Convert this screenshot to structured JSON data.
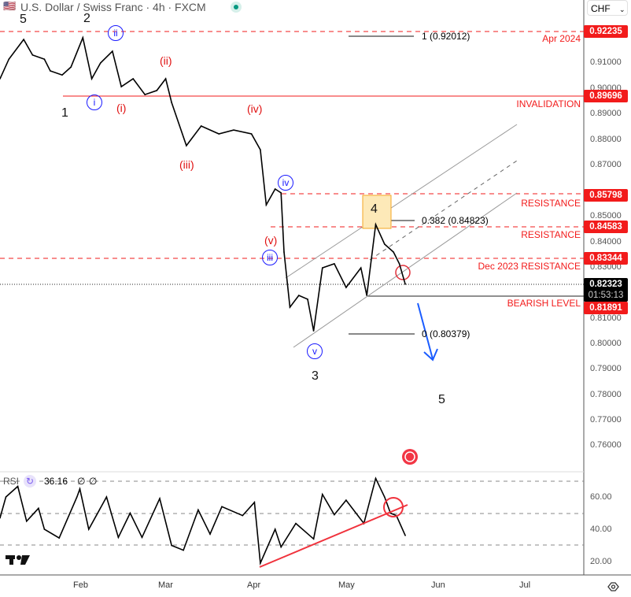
{
  "header": {
    "title": "U.S. Dollar / Swiss Franc · 4h · FXCM",
    "currency": "CHF"
  },
  "price_axis": {
    "ticks": [
      "0.91000",
      "0.90000",
      "0.89000",
      "0.88000",
      "0.87000",
      "0.85000",
      "0.84000",
      "0.83000",
      "0.81000",
      "0.80000",
      "0.79000",
      "0.78000",
      "0.77000",
      "0.76000"
    ],
    "badges": {
      "apr2024": "0.92235",
      "invalidation": "0.89696",
      "res1": "0.85798",
      "res2": "0.84583",
      "dec2023": "0.83344",
      "current": "0.82323",
      "countdown": "01:53:13",
      "bearish": "0.81891"
    }
  },
  "levels": {
    "apr2024": "Apr 2024",
    "invalidation": "INVALIDATION",
    "res1": "RESISTANCE",
    "res2": "RESISTANCE",
    "dec2023": "Dec 2023 RESISTANCE",
    "bearish": "BEARISH LEVEL"
  },
  "fib": {
    "f1": "1 (0.92012)",
    "f382": "0.382 (0.84823)",
    "f0": "0 (0.80379)"
  },
  "waves": {
    "w5a": "5",
    "w2": "2",
    "ii_c": "ii",
    "ii_p": "(ii)",
    "i_c": "i",
    "i_p": "(i)",
    "w1": "1",
    "iii_p": "(iii)",
    "iv_p": "(iv)",
    "iv_c": "iv",
    "v_p": "(v)",
    "iii_c": "iii",
    "v_c": "v",
    "w3": "3",
    "w4": "4",
    "w5b": "5"
  },
  "rsi": {
    "label": "RSI",
    "value": "36.16",
    "na1": "∅",
    "na2": "∅",
    "ticks": [
      "60.00",
      "40.00",
      "20.00"
    ]
  },
  "time_axis": [
    "Feb",
    "Mar",
    "Apr",
    "May",
    "Jun",
    "Jul"
  ],
  "colors": {
    "resistance": "#f21b1b",
    "wave_minor": "#1a1aff",
    "arrow": "#1a5cff",
    "status": "#089981"
  },
  "chart_data": [
    {
      "type": "line",
      "title": "U.S. Dollar / Swiss Franc · 4h · FXCM",
      "ylim": [
        0.755,
        0.928
      ],
      "xlim": [
        "2024-01-05",
        "2024-07-15"
      ],
      "series": [
        {
          "values_x": [
            "2024-01-05",
            "2024-01-08",
            "2024-01-13",
            "2024-01-16",
            "2024-01-20",
            "2024-01-22",
            "2024-01-26",
            "2024-01-29",
            "2024-02-02",
            "2024-02-05",
            "2024-02-08",
            "2024-02-12",
            "2024-02-15",
            "2024-02-19",
            "2024-02-23",
            "2024-02-27",
            "2024-03-01",
            "2024-03-03",
            "2024-03-08",
            "2024-03-13",
            "2024-03-19",
            "2024-03-24",
            "2024-03-30",
            "2024-04-02",
            "2024-04-04",
            "2024-04-07",
            "2024-04-09",
            "2024-04-10",
            "2024-04-12",
            "2024-04-15",
            "2024-04-18",
            "2024-04-20",
            "2024-04-23",
            "2024-04-27",
            "2024-05-01",
            "2024-05-06",
            "2024-05-08",
            "2024-05-11",
            "2024-05-14",
            "2024-05-17",
            "2024-05-19",
            "2024-05-21"
          ],
          "values": [
            0.9037,
            0.9114,
            0.9191,
            0.913,
            0.9114,
            0.9068,
            0.9052,
            0.9083,
            0.9198,
            0.9037,
            0.9099,
            0.9145,
            0.9006,
            0.9037,
            0.8975,
            0.8991,
            0.9037,
            0.8944,
            0.8775,
            0.8852,
            0.8821,
            0.8836,
            0.8821,
            0.8759,
            0.8543,
            0.8605,
            0.859,
            0.8358,
            0.8142,
            0.8188,
            0.8173,
            0.8049,
            0.8296,
            0.8312,
            0.8219,
            0.8296,
            0.8188,
            0.8466,
            0.8389,
            0.8358,
            0.8312,
            0.8232
          ]
        }
      ]
    },
    {
      "type": "line",
      "title": "RSI",
      "ylim": [
        15,
        75
      ],
      "reference_lines": [
        70,
        50,
        30
      ],
      "series": [
        {
          "values_x": [
            "2024-01-05",
            "2024-01-07",
            "2024-01-11",
            "2024-01-14",
            "2024-01-18",
            "2024-01-20",
            "2024-01-25",
            "2024-01-31",
            "2024-02-01",
            "2024-02-04",
            "2024-02-10",
            "2024-02-14",
            "2024-02-18",
            "2024-02-22",
            "2024-02-28",
            "2024-03-03",
            "2024-03-07",
            "2024-03-12",
            "2024-03-16",
            "2024-03-20",
            "2024-03-27",
            "2024-03-31",
            "2024-04-02",
            "2024-04-07",
            "2024-04-09",
            "2024-04-14",
            "2024-04-20",
            "2024-04-23",
            "2024-04-27",
            "2024-05-01",
            "2024-05-07",
            "2024-05-11",
            "2024-05-14",
            "2024-05-16",
            "2024-05-18",
            "2024-05-21"
          ],
          "values": [
            47,
            60,
            66.6,
            45,
            53,
            40,
            34.6,
            60,
            65,
            40,
            60,
            35,
            50,
            35,
            59,
            30,
            27,
            52,
            37,
            54,
            48.5,
            56.7,
            19,
            40,
            29,
            43.6,
            34,
            61.6,
            49,
            58,
            43.6,
            71.5,
            60,
            50,
            48.5,
            36.16
          ]
        }
      ]
    }
  ]
}
